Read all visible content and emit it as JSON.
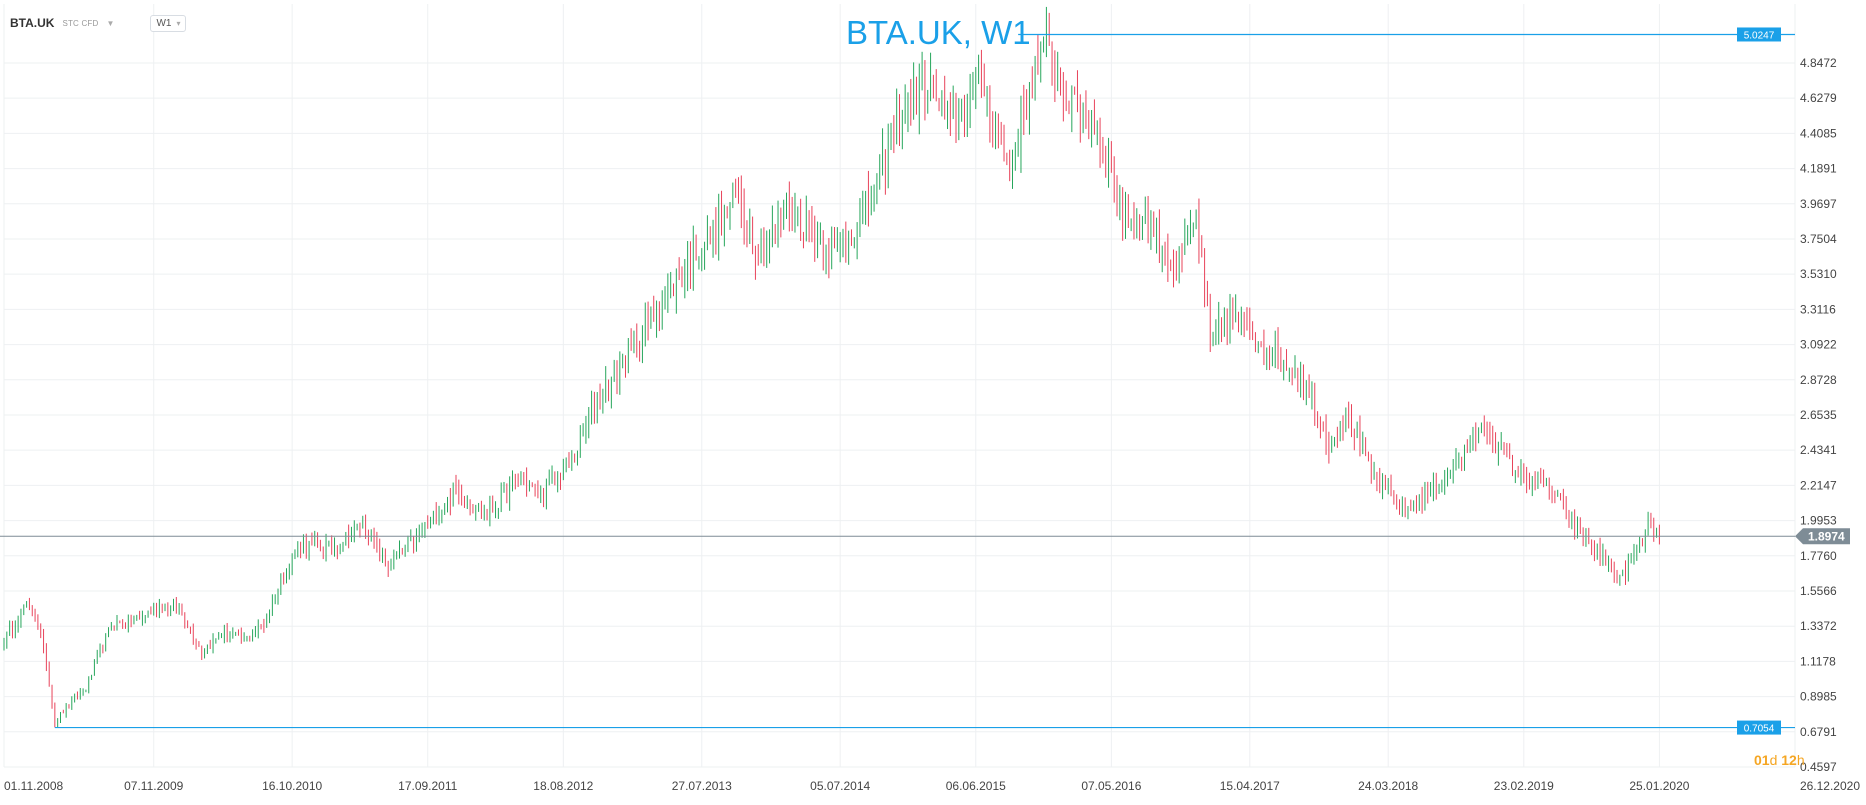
{
  "header": {
    "symbol": "BTA.UK",
    "instrument": "STC CFD",
    "timeframe": "W1"
  },
  "timer": {
    "days": "01",
    "days_unit": "d",
    "hours": "12",
    "hours_unit": "h"
  },
  "colors": {
    "accent": "#1aa0e8",
    "bull": "#26a65b",
    "bear": "#e8435a",
    "price_line": "#7e8c96",
    "timer": "#f5a623"
  },
  "chart_data": {
    "type": "candlestick",
    "title": "BTA.UK, W1",
    "y_ticks": [
      "4.8472",
      "4.6279",
      "4.4085",
      "4.1891",
      "3.9697",
      "3.7504",
      "3.5310",
      "3.3116",
      "3.0922",
      "2.8728",
      "2.6535",
      "2.4341",
      "2.2147",
      "1.9953",
      "1.7760",
      "1.5566",
      "1.3372",
      "1.1178",
      "0.8985",
      "0.6791",
      "0.4597"
    ],
    "x_ticks": [
      "01.11.2008",
      "07.11.2009",
      "16.10.2010",
      "17.09.2011",
      "18.08.2012",
      "27.07.2013",
      "05.07.2014",
      "06.06.2015",
      "07.05.2016",
      "15.04.2017",
      "24.03.2018",
      "23.02.2019",
      "25.01.2020",
      "26.12.2020"
    ],
    "ylim": [
      0.4597,
      5.09
    ],
    "xlim": [
      "2008-11-01",
      "2020-12-26"
    ],
    "current_price": "1.8974",
    "horizontal_lines": [
      {
        "value": 5.0247,
        "label": "5.0247",
        "start": "2015-09-19"
      },
      {
        "value": 0.7054,
        "label": "0.7054",
        "start": "2009-03-07"
      }
    ],
    "weekly_close_path": [
      [
        "2008-11-01",
        1.25
      ],
      [
        "2008-12-20",
        1.45
      ],
      [
        "2009-01-17",
        1.42
      ],
      [
        "2009-02-14",
        1.1
      ],
      [
        "2009-03-07",
        0.74
      ],
      [
        "2009-04-11",
        0.85
      ],
      [
        "2009-05-23",
        0.95
      ],
      [
        "2009-07-25",
        1.35
      ],
      [
        "2009-10-03",
        1.38
      ],
      [
        "2009-11-28",
        1.48
      ],
      [
        "2010-01-16",
        1.42
      ],
      [
        "2010-03-06",
        1.18
      ],
      [
        "2010-05-01",
        1.3
      ],
      [
        "2010-06-19",
        1.25
      ],
      [
        "2010-08-07",
        1.35
      ],
      [
        "2010-09-18",
        1.62
      ],
      [
        "2010-11-06",
        1.85
      ],
      [
        "2011-01-22",
        1.82
      ],
      [
        "2011-04-09",
        1.98
      ],
      [
        "2011-06-11",
        1.7
      ],
      [
        "2011-09-03",
        1.93
      ],
      [
        "2011-11-26",
        2.18
      ],
      [
        "2012-02-11",
        2.02
      ],
      [
        "2012-05-05",
        2.28
      ],
      [
        "2012-06-23",
        2.15
      ],
      [
        "2012-09-08",
        2.38
      ],
      [
        "2012-11-10",
        2.75
      ],
      [
        "2013-02-02",
        3.05
      ],
      [
        "2013-05-04",
        3.4
      ],
      [
        "2013-07-20",
        3.7
      ],
      [
        "2013-09-14",
        3.85
      ],
      [
        "2013-10-19",
        4.05
      ],
      [
        "2013-12-14",
        3.65
      ],
      [
        "2014-03-01",
        3.95
      ],
      [
        "2014-06-21",
        3.65
      ],
      [
        "2014-09-20",
        4.0
      ],
      [
        "2014-12-06",
        4.55
      ],
      [
        "2015-02-14",
        4.7
      ],
      [
        "2015-04-04",
        4.48
      ],
      [
        "2015-06-20",
        4.75
      ],
      [
        "2015-08-29",
        4.15
      ],
      [
        "2015-10-17",
        4.7
      ],
      [
        "2015-11-28",
        4.95
      ],
      [
        "2016-01-23",
        4.6
      ],
      [
        "2016-04-02",
        4.45
      ],
      [
        "2016-06-04",
        3.9
      ],
      [
        "2016-08-13",
        3.85
      ],
      [
        "2016-10-15",
        3.55
      ],
      [
        "2016-12-03",
        3.9
      ],
      [
        "2017-01-07",
        3.1
      ],
      [
        "2017-02-25",
        3.3
      ],
      [
        "2017-06-03",
        3.05
      ],
      [
        "2017-08-19",
        2.9
      ],
      [
        "2017-10-28",
        2.48
      ],
      [
        "2017-12-16",
        2.65
      ],
      [
        "2018-02-10",
        2.28
      ],
      [
        "2018-05-05",
        2.05
      ],
      [
        "2018-08-04",
        2.25
      ],
      [
        "2018-10-06",
        2.45
      ],
      [
        "2018-11-17",
        2.58
      ],
      [
        "2019-02-02",
        2.3
      ],
      [
        "2019-04-20",
        2.22
      ],
      [
        "2019-06-29",
        1.95
      ],
      [
        "2019-09-14",
        1.75
      ],
      [
        "2019-10-19",
        1.62
      ],
      [
        "2019-12-07",
        1.85
      ],
      [
        "2020-01-04",
        1.98
      ],
      [
        "2020-01-25",
        1.88
      ]
    ]
  }
}
